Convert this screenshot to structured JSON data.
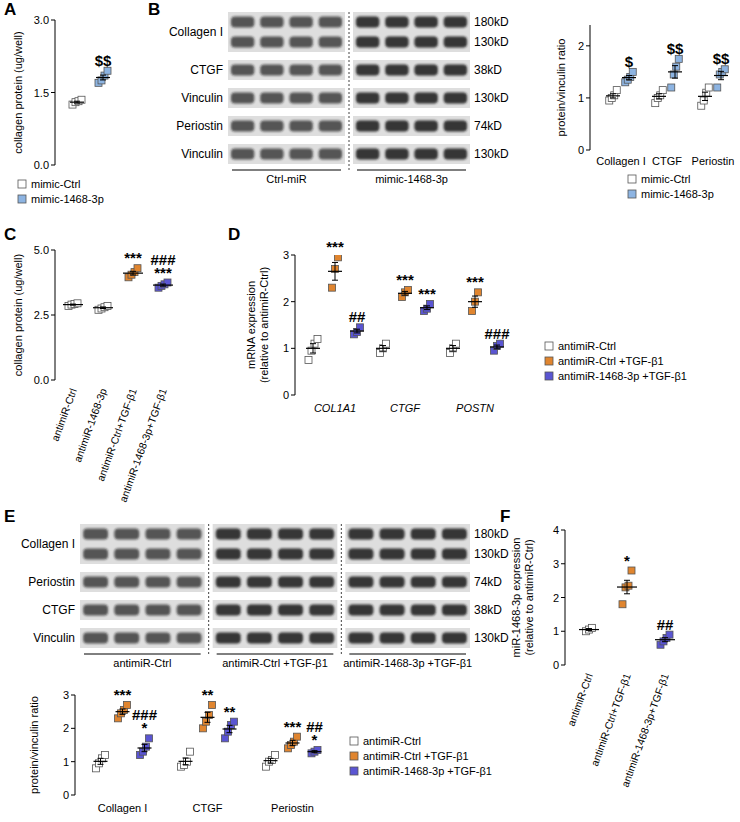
{
  "panel_labels": [
    "A",
    "B",
    "C",
    "D",
    "E",
    "F"
  ],
  "chart_data": [
    {
      "type": "strip",
      "marker": "square",
      "ylabel": [
        "collagen protein (ug/well)"
      ],
      "ylim": [
        0,
        3
      ],
      "yticks": [
        {
          "value": 0,
          "label": "0.0"
        },
        {
          "value": 1.5,
          "label": "1.5"
        },
        {
          "value": 3,
          "label": "3.0"
        }
      ],
      "categories": [
        null
      ],
      "tick_labels": "y",
      "legend": "bottom",
      "series": [
        {
          "name": "mimic-Ctrl",
          "color": "#ffffff",
          "values": [
            [
              1.25,
              1.3,
              1.32,
              1.35
            ]
          ],
          "mean": [
            1.3
          ],
          "error": [
            0.02
          ],
          "annotations": [
            null
          ]
        },
        {
          "name": "mimic-1468-3p",
          "color": "#8db4e2",
          "values": [
            [
              1.7,
              1.75,
              1.85,
              1.95
            ]
          ],
          "mean": [
            1.81
          ],
          "error": [
            0.05
          ],
          "annotations": [
            [
              "$$"
            ]
          ]
        }
      ]
    },
    {
      "type": "strip",
      "marker": "square",
      "ylabel": [
        "protein/vinculin ratio"
      ],
      "ylim": [
        0,
        2.4
      ],
      "yticks": [
        0,
        1,
        2
      ],
      "categories": [
        "Collagen I",
        "CTGF",
        "Periostin"
      ],
      "legend": "bottom-right",
      "series": [
        {
          "name": "mimic-Ctrl",
          "color": "#ffffff",
          "values": [
            [
              0.95,
              1.0,
              1.05,
              1.15
            ],
            [
              0.9,
              1.0,
              1.05,
              1.15
            ],
            [
              0.85,
              0.95,
              1.1,
              1.2
            ]
          ],
          "mean": [
            1.04,
            1.03,
            1.03
          ],
          "error": [
            0.04,
            0.05,
            0.08
          ],
          "annotations": [
            null,
            null,
            null
          ]
        },
        {
          "name": "mimic-1468-3p",
          "color": "#8db4e2",
          "values": [
            [
              1.3,
              1.35,
              1.4,
              1.5
            ],
            [
              1.2,
              1.45,
              1.6,
              1.75
            ],
            [
              1.2,
              1.45,
              1.5,
              1.55
            ]
          ],
          "mean": [
            1.39,
            1.5,
            1.43
          ],
          "error": [
            0.04,
            0.12,
            0.08
          ],
          "annotations": [
            [
              "$"
            ],
            [
              "$$"
            ],
            [
              "$$"
            ]
          ]
        }
      ]
    },
    {
      "type": "strip",
      "marker": "square",
      "ylabel": [
        "collagen protein (ug/well)"
      ],
      "ylim": [
        0,
        5
      ],
      "yticks": [
        {
          "value": 0,
          "label": "0.0"
        },
        {
          "value": 2.5,
          "label": "2.5"
        },
        {
          "value": 5,
          "label": "5.0"
        }
      ],
      "categories": [
        "antimiR-Ctrl",
        "antimiR-1468-3p",
        "antimiR-Ctrl+TGF-β1",
        "antimiR-1468-3p+TGF-β1"
      ],
      "series": [
        {
          "colors": [
            "#ffffff",
            "#ffffff",
            "#e0852f",
            "#5a55d2"
          ],
          "values": [
            [
              2.85,
              2.9,
              2.92,
              2.95
            ],
            [
              2.7,
              2.75,
              2.8,
              2.85
            ],
            [
              3.95,
              4.05,
              4.15,
              4.3
            ],
            [
              3.55,
              3.62,
              3.68,
              3.75
            ]
          ],
          "mean": [
            2.9,
            2.78,
            4.11,
            3.65
          ],
          "error": [
            0.02,
            0.03,
            0.07,
            0.04
          ],
          "annotations": [
            null,
            null,
            [
              "***"
            ],
            [
              "###",
              "***"
            ]
          ]
        }
      ]
    },
    {
      "type": "strip",
      "marker": "square",
      "ylabel": [
        "mRNA expression",
        "(relative to antimiR-Ctrl)"
      ],
      "ylim": [
        0,
        3
      ],
      "yticks": [
        0,
        1,
        2,
        3
      ],
      "categories": [
        "COL1A1",
        "CTGF",
        "POSTN"
      ],
      "legend": "right",
      "series": [
        {
          "name": "antimiR-Ctrl",
          "color": "#ffffff",
          "values": [
            [
              0.75,
              0.95,
              1.1,
              1.2
            ],
            [
              0.9,
              1.0,
              1.1
            ],
            [
              0.9,
              1.0,
              1.1
            ]
          ],
          "mean": [
            1.0,
            1.0,
            1.0
          ],
          "error": [
            0.1,
            0.06,
            0.06
          ],
          "annotations": [
            null,
            null,
            null
          ]
        },
        {
          "name": "antimiR-Ctrl +TGF-β1",
          "color": "#e0852f",
          "values": [
            [
              2.3,
              2.7,
              2.95
            ],
            [
              2.1,
              2.2,
              2.25
            ],
            [
              1.8,
              2.0,
              2.2
            ]
          ],
          "mean": [
            2.65,
            2.18,
            2.0
          ],
          "error": [
            0.19,
            0.04,
            0.12
          ],
          "annotations": [
            [
              "***"
            ],
            [
              "***"
            ],
            [
              "***"
            ]
          ]
        },
        {
          "name": "antimiR-1468-3p +TGF-β1",
          "color": "#5a55d2",
          "values": [
            [
              1.3,
              1.35,
              1.45
            ],
            [
              1.8,
              1.85,
              1.95
            ],
            [
              0.95,
              1.05,
              1.1
            ]
          ],
          "mean": [
            1.37,
            1.87,
            1.03
          ],
          "error": [
            0.04,
            0.04,
            0.04
          ],
          "annotations": [
            [
              "##"
            ],
            [
              "***"
            ],
            [
              "###"
            ]
          ]
        }
      ]
    },
    {
      "type": "strip",
      "marker": "square",
      "ylabel": [
        "protein/vinculin ratio"
      ],
      "ylim": [
        0,
        3
      ],
      "yticks": [
        0,
        1,
        2,
        3
      ],
      "categories": [
        "Collagen I",
        "CTGF",
        "Periostin"
      ],
      "legend": "right",
      "series": [
        {
          "name": "antimiR-Ctrl",
          "color": "#ffffff",
          "values": [
            [
              0.8,
              0.95,
              1.1,
              1.2
            ],
            [
              0.85,
              0.9,
              1.0,
              1.3
            ],
            [
              0.85,
              1.0,
              1.05,
              1.2
            ]
          ],
          "mean": [
            1.01,
            1.01,
            1.03
          ],
          "error": [
            0.09,
            0.1,
            0.07
          ],
          "annotations": [
            null,
            null,
            null
          ]
        },
        {
          "name": "antimiR-Ctrl +TGF-β1",
          "color": "#e0852f",
          "values": [
            [
              2.3,
              2.45,
              2.55,
              2.7
            ],
            [
              2.0,
              2.2,
              2.4,
              2.7
            ],
            [
              1.4,
              1.5,
              1.6,
              1.75
            ]
          ],
          "mean": [
            2.5,
            2.33,
            1.56
          ],
          "error": [
            0.08,
            0.15,
            0.08
          ],
          "annotations": [
            [
              "***"
            ],
            [
              "**"
            ],
            [
              "***"
            ]
          ]
        },
        {
          "name": "antimiR-1468-3p +TGF-β1",
          "color": "#5a55d2",
          "values": [
            [
              1.2,
              1.3,
              1.45,
              1.7
            ],
            [
              1.7,
              1.9,
              2.1,
              2.2
            ],
            [
              1.25,
              1.3,
              1.35
            ]
          ],
          "mean": [
            1.41,
            1.98,
            1.3
          ],
          "error": [
            0.11,
            0.11,
            0.03
          ],
          "annotations": [
            [
              "###",
              "*"
            ],
            [
              "**"
            ],
            [
              "##",
              "*"
            ]
          ]
        }
      ]
    },
    {
      "type": "strip",
      "marker": "square",
      "ylabel": [
        "miR-1468-3p expression",
        "(relative to antimiR-Ctrl)"
      ],
      "ylim": [
        0,
        4
      ],
      "yticks": [
        0,
        1,
        2,
        3,
        4
      ],
      "categories": [
        "antimiR-Ctrl",
        "antimiR-Ctrl+TGF-β1",
        "antimiR-1468-3p+TGF-β1"
      ],
      "series": [
        {
          "colors": [
            "#ffffff",
            "#e0852f",
            "#5a55d2"
          ],
          "values": [
            [
              1.0,
              1.05,
              1.1
            ],
            [
              1.8,
              2.3,
              2.35,
              2.8
            ],
            [
              0.6,
              0.7,
              0.8,
              0.9
            ]
          ],
          "mean": [
            1.05,
            2.31,
            0.75
          ],
          "error": [
            0.03,
            0.2,
            0.06
          ],
          "annotations": [
            null,
            [
              "*"
            ],
            [
              "##"
            ]
          ]
        }
      ]
    }
  ],
  "blots": [
    {
      "rows": [
        {
          "label": "Collagen I",
          "kd": [
            "180kD",
            "130kD"
          ]
        },
        {
          "label": "CTGF",
          "kd": [
            "38kD"
          ]
        },
        {
          "label": "Vinculin",
          "kd": [
            "130kD"
          ]
        },
        {
          "label": "Periostin",
          "kd": [
            "74kD"
          ]
        },
        {
          "label": "Vinculin",
          "kd": [
            "130kD"
          ]
        }
      ],
      "groups": [
        "Ctrl-miR",
        "mimic-1468-3p"
      ]
    },
    {
      "rows": [
        {
          "label": "Collagen I",
          "kd": [
            "180kD",
            "130kD"
          ]
        },
        {
          "label": "Periostin",
          "kd": [
            "74kD"
          ]
        },
        {
          "label": "CTGF",
          "kd": [
            "38kD"
          ]
        },
        {
          "label": "Vinculin",
          "kd": [
            "130kD"
          ]
        }
      ],
      "groups": [
        "antimiR-Ctrl",
        "antimiR-Ctrl +TGF-β1",
        "antimiR-1468-3p +TGF-β1"
      ]
    }
  ]
}
